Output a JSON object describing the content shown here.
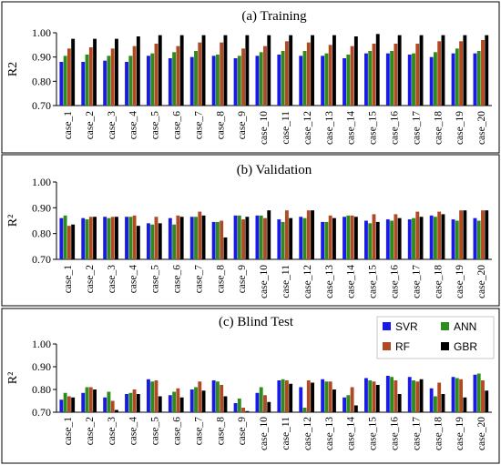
{
  "colors": {
    "SVR": "#1a1ae6",
    "ANN": "#2e8b1e",
    "RF": "#b04a22",
    "GBR": "#000000"
  },
  "chart_data": [
    {
      "type": "bar",
      "title": "(a) Training",
      "ylabel": "R2",
      "ylim": [
        0.7,
        1.0
      ],
      "yticks": [
        "0.70",
        "0.80",
        "0.90",
        "1.00"
      ],
      "categories": [
        "case_1",
        "case_2",
        "case_3",
        "case_4",
        "case_5",
        "case_6",
        "case_7",
        "case_8",
        "case_9",
        "case_10",
        "case_11",
        "case_12",
        "case_13",
        "case_14",
        "case_15",
        "case_16",
        "case_17",
        "case_18",
        "case_19",
        "case_20"
      ],
      "series": [
        {
          "name": "SVR",
          "values": [
            0.88,
            0.88,
            0.885,
            0.88,
            0.905,
            0.895,
            0.9,
            0.905,
            0.895,
            0.905,
            0.91,
            0.905,
            0.905,
            0.895,
            0.915,
            0.915,
            0.91,
            0.9,
            0.915,
            0.915
          ]
        },
        {
          "name": "ANN",
          "values": [
            0.905,
            0.91,
            0.905,
            0.905,
            0.915,
            0.92,
            0.925,
            0.91,
            0.905,
            0.92,
            0.925,
            0.925,
            0.915,
            0.91,
            0.925,
            0.925,
            0.915,
            0.92,
            0.935,
            0.925
          ]
        },
        {
          "name": "RF",
          "values": [
            0.935,
            0.94,
            0.935,
            0.945,
            0.955,
            0.945,
            0.96,
            0.96,
            0.935,
            0.945,
            0.965,
            0.96,
            0.95,
            0.945,
            0.955,
            0.955,
            0.955,
            0.965,
            0.965,
            0.97
          ]
        },
        {
          "name": "GBR",
          "values": [
            0.975,
            0.975,
            0.975,
            0.985,
            0.99,
            0.99,
            0.99,
            0.99,
            0.99,
            0.99,
            0.99,
            0.99,
            0.99,
            0.985,
            0.995,
            0.99,
            0.99,
            0.99,
            0.99,
            0.99
          ]
        }
      ],
      "grid": false,
      "legend": false
    },
    {
      "type": "bar",
      "title": "(b) Validation",
      "ylabel": "R²",
      "ylim": [
        0.7,
        1.0
      ],
      "yticks": [
        "0.70",
        "0.80",
        "0.90",
        "1.00"
      ],
      "categories": [
        "case_1",
        "case_2",
        "case_3",
        "case_4",
        "case_5",
        "case_6",
        "case_7",
        "case_8",
        "case_9",
        "case_10",
        "case_11",
        "case_12",
        "case_13",
        "case_14",
        "case_15",
        "case_16",
        "case_17",
        "case_18",
        "case_19",
        "case_20"
      ],
      "series": [
        {
          "name": "SVR",
          "values": [
            0.86,
            0.86,
            0.865,
            0.865,
            0.84,
            0.86,
            0.865,
            0.845,
            0.87,
            0.87,
            0.855,
            0.865,
            0.845,
            0.865,
            0.85,
            0.855,
            0.855,
            0.87,
            0.855,
            0.86
          ]
        },
        {
          "name": "ANN",
          "values": [
            0.87,
            0.855,
            0.86,
            0.865,
            0.835,
            0.835,
            0.865,
            0.845,
            0.87,
            0.87,
            0.845,
            0.86,
            0.845,
            0.87,
            0.84,
            0.85,
            0.86,
            0.865,
            0.85,
            0.85
          ]
        },
        {
          "name": "RF",
          "values": [
            0.83,
            0.865,
            0.865,
            0.87,
            0.865,
            0.87,
            0.885,
            0.85,
            0.855,
            0.86,
            0.89,
            0.89,
            0.87,
            0.87,
            0.875,
            0.875,
            0.885,
            0.885,
            0.89,
            0.89
          ]
        },
        {
          "name": "GBR",
          "values": [
            0.835,
            0.865,
            0.865,
            0.83,
            0.84,
            0.865,
            0.87,
            0.785,
            0.865,
            0.89,
            0.86,
            0.89,
            0.86,
            0.865,
            0.845,
            0.86,
            0.865,
            0.875,
            0.89,
            0.89
          ]
        }
      ],
      "grid": false,
      "legend": false
    },
    {
      "type": "bar",
      "title": "(c) Blind Test",
      "ylabel": "R²",
      "ylim": [
        0.7,
        1.0
      ],
      "yticks": [
        "0.70",
        "0.80",
        "0.90",
        "1.00"
      ],
      "categories": [
        "case_1",
        "case_2",
        "case_3",
        "case_4",
        "case_5",
        "case_6",
        "case_7",
        "case_8",
        "case_9",
        "case_10",
        "case_11",
        "case_12",
        "case_13",
        "case_14",
        "case_15",
        "case_16",
        "case_17",
        "case_18",
        "case_19",
        "case_20"
      ],
      "series": [
        {
          "name": "SVR",
          "values": [
            0.755,
            0.785,
            0.765,
            0.78,
            0.845,
            0.775,
            0.8,
            0.84,
            0.74,
            0.785,
            0.84,
            0.81,
            0.845,
            0.765,
            0.85,
            0.86,
            0.855,
            0.805,
            0.855,
            0.865
          ]
        },
        {
          "name": "ANN",
          "values": [
            0.785,
            0.81,
            0.79,
            0.785,
            0.835,
            0.79,
            0.81,
            0.835,
            0.76,
            0.81,
            0.845,
            0.72,
            0.835,
            0.775,
            0.84,
            0.855,
            0.84,
            0.77,
            0.85,
            0.87
          ]
        },
        {
          "name": "RF",
          "values": [
            0.77,
            0.81,
            0.75,
            0.8,
            0.84,
            0.805,
            0.835,
            0.82,
            0.72,
            0.775,
            0.84,
            0.84,
            0.835,
            0.81,
            0.835,
            0.84,
            0.835,
            0.83,
            0.845,
            0.84
          ]
        },
        {
          "name": "GBR",
          "values": [
            0.765,
            0.8,
            0.71,
            0.78,
            0.77,
            0.765,
            0.795,
            0.77,
            0.705,
            0.745,
            0.825,
            0.83,
            0.8,
            0.73,
            0.82,
            0.78,
            0.845,
            0.78,
            0.765,
            0.795
          ]
        }
      ],
      "grid": false,
      "legend": true,
      "legend_position": "top-right",
      "legend_entries": [
        "SVR",
        "ANN",
        "RF",
        "GBR"
      ]
    }
  ]
}
